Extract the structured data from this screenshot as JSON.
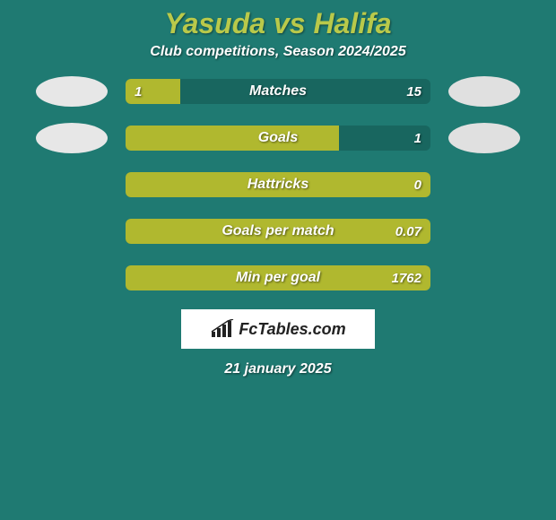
{
  "background_color": "#1f7a72",
  "title": {
    "text": "Yasuda vs Halifa",
    "color": "#b9c94a",
    "fontsize": 32
  },
  "subtitle": {
    "text": "Club competitions, Season 2024/2025",
    "fontsize": 16
  },
  "avatars": {
    "left_color": "#e7e7e7",
    "right_color": "#e0e0e0"
  },
  "bars": {
    "left_color": "#b0b82f",
    "right_color": "#18665f",
    "track_width": 340,
    "track_height": 28,
    "label_fontsize": 16,
    "value_fontsize": 15,
    "rows": [
      {
        "label": "Matches",
        "left": "1",
        "right": "15",
        "left_pct": 18,
        "show_avatars": true
      },
      {
        "label": "Goals",
        "left": "",
        "right": "1",
        "left_pct": 70,
        "show_avatars": true
      },
      {
        "label": "Hattricks",
        "left": "",
        "right": "0",
        "left_pct": 100,
        "show_avatars": false
      },
      {
        "label": "Goals per match",
        "left": "",
        "right": "0.07",
        "left_pct": 100,
        "show_avatars": false
      },
      {
        "label": "Min per goal",
        "left": "",
        "right": "1762",
        "left_pct": 100,
        "show_avatars": false
      }
    ]
  },
  "logo": {
    "text": "FcTables.com",
    "icon_color": "#222222",
    "fontsize": 18
  },
  "date": {
    "text": "21 january 2025",
    "fontsize": 16
  }
}
